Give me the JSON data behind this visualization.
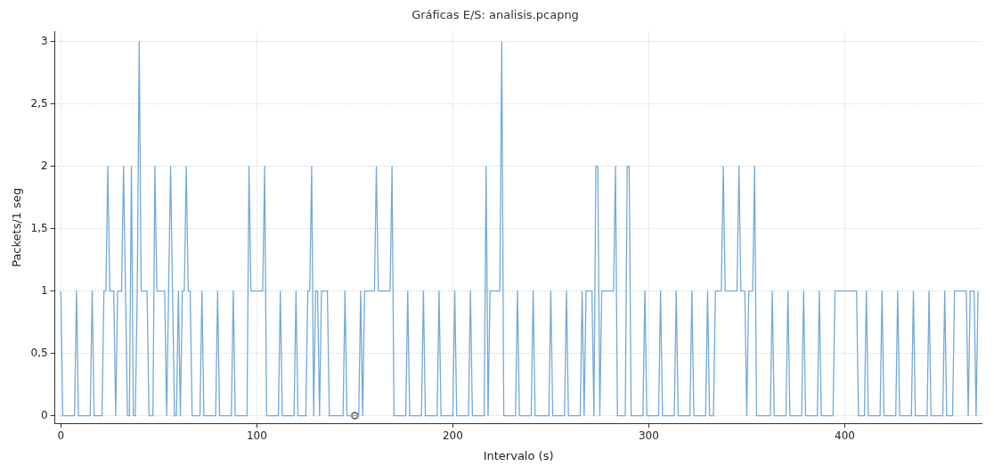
{
  "chart_data": {
    "type": "line",
    "title": "Gráficas E/S: analisis.pcapng",
    "xlabel": "Intervalo (s)",
    "ylabel": "Packets/1 seg",
    "xlim": [
      -3,
      470
    ],
    "xticks": [
      0,
      100,
      200,
      300,
      400
    ],
    "ylim": [
      -0.06,
      3.08
    ],
    "yticks": [
      0,
      {
        "value": 0.5,
        "label": "0,5"
      },
      1,
      {
        "value": 1.5,
        "label": "1,5"
      },
      2,
      {
        "value": 2.5,
        "label": "2,5"
      },
      3
    ],
    "grid": true,
    "legend": false,
    "series": [
      {
        "color": "#74a9d8",
        "marker": "none",
        "x": [
          0,
          1,
          7,
          8,
          9,
          15,
          16,
          17,
          21,
          22,
          23,
          24,
          25,
          26,
          27,
          28,
          29,
          30,
          31,
          32,
          33,
          34,
          35,
          36,
          37,
          38,
          39,
          40,
          41,
          44,
          45,
          47,
          48,
          49,
          53,
          54,
          55,
          56,
          57,
          58,
          59,
          60,
          61,
          62,
          63,
          64,
          65,
          66,
          67,
          71,
          72,
          73,
          79,
          80,
          81,
          87,
          88,
          89,
          95,
          96,
          97,
          103,
          104,
          105,
          111,
          112,
          113,
          119,
          120,
          121,
          125,
          126,
          127,
          128,
          129,
          130,
          131,
          132,
          133,
          136,
          137,
          138,
          144,
          145,
          146,
          152,
          153,
          154,
          155,
          160,
          161,
          162,
          168,
          169,
          170,
          176,
          177,
          178,
          184,
          185,
          186,
          192,
          193,
          194,
          200,
          201,
          202,
          208,
          209,
          210,
          216,
          217,
          218,
          219,
          224,
          225,
          226,
          232,
          233,
          234,
          240,
          241,
          242,
          249,
          250,
          251,
          257,
          258,
          259,
          265,
          266,
          267,
          268,
          271,
          272,
          273,
          274,
          275,
          276,
          282,
          283,
          284,
          288,
          289,
          290,
          291,
          297,
          298,
          299,
          305,
          306,
          307,
          313,
          314,
          315,
          321,
          322,
          323,
          329,
          330,
          331,
          333,
          334,
          337,
          338,
          339,
          345,
          346,
          347,
          349,
          350,
          351,
          353,
          354,
          355,
          362,
          363,
          364,
          370,
          371,
          372,
          378,
          379,
          380,
          386,
          387,
          388,
          394,
          395,
          406,
          407,
          410,
          411,
          412,
          418,
          419,
          420,
          426,
          427,
          428,
          434,
          435,
          436,
          442,
          443,
          444,
          450,
          451,
          452,
          455,
          456,
          462,
          463,
          464,
          466,
          467,
          468
        ],
        "values": [
          1,
          0,
          0,
          1,
          0,
          0,
          1,
          0,
          0,
          1,
          1,
          2,
          1,
          1,
          1,
          0,
          1,
          1,
          1,
          2,
          1,
          0,
          0,
          2,
          0,
          0,
          1,
          3,
          1,
          1,
          0,
          0,
          2,
          1,
          1,
          0,
          1,
          2,
          1,
          0,
          0,
          1,
          0,
          1,
          1,
          2,
          1,
          1,
          0,
          0,
          1,
          0,
          0,
          1,
          0,
          0,
          1,
          0,
          0,
          2,
          1,
          1,
          2,
          0,
          0,
          1,
          0,
          0,
          1,
          0,
          0,
          1,
          1,
          2,
          0,
          1,
          1,
          0,
          1,
          1,
          0,
          0,
          0,
          1,
          0,
          0,
          1,
          0,
          1,
          1,
          2,
          1,
          1,
          2,
          0,
          0,
          1,
          0,
          0,
          1,
          0,
          0,
          1,
          0,
          0,
          1,
          0,
          0,
          1,
          0,
          0,
          2,
          0,
          1,
          1,
          3,
          0,
          0,
          1,
          0,
          0,
          1,
          0,
          0,
          1,
          0,
          0,
          1,
          0,
          0,
          1,
          0,
          1,
          1,
          0,
          2,
          2,
          0,
          1,
          1,
          2,
          0,
          0,
          2,
          2,
          0,
          0,
          1,
          0,
          0,
          1,
          0,
          0,
          1,
          0,
          0,
          1,
          0,
          0,
          1,
          0,
          0,
          1,
          1,
          2,
          1,
          1,
          2,
          1,
          1,
          0,
          1,
          1,
          2,
          0,
          0,
          1,
          0,
          0,
          1,
          0,
          0,
          1,
          0,
          0,
          1,
          0,
          0,
          1,
          1,
          0,
          0,
          1,
          0,
          0,
          1,
          0,
          0,
          1,
          0,
          0,
          1,
          0,
          0,
          1,
          0,
          0,
          1,
          0,
          0,
          1,
          1,
          0,
          1,
          1,
          0,
          1
        ]
      },
      {
        "type": "scatter",
        "color": "#555555",
        "marker": "circle",
        "x": [
          150
        ],
        "values": [
          0
        ]
      }
    ]
  }
}
